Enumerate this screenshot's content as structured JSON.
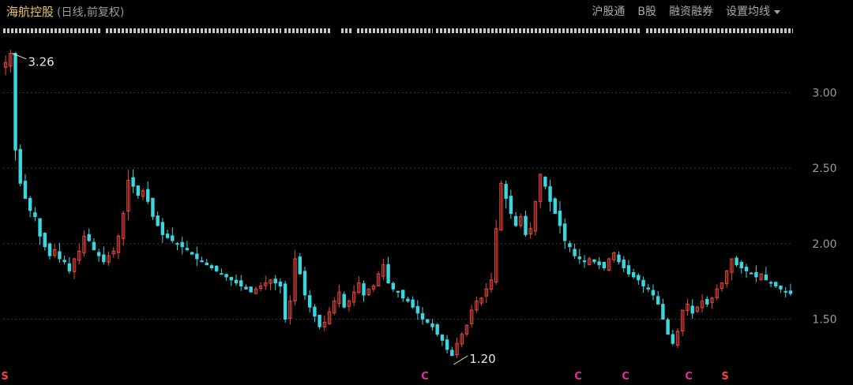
{
  "header": {
    "title": "海航控股",
    "subtitle": "(日线,前复权)",
    "menu": [
      "沪股通",
      "B股",
      "融资融券",
      "设置均线"
    ]
  },
  "colors": {
    "background": "#000000",
    "up": "#e8463c",
    "down": "#39d7e0",
    "grid": "#3a3a3a",
    "marker_c": "#e0309a",
    "marker_s": "#ff3b3b"
  },
  "chart_data": {
    "type": "candlestick",
    "xlabel": "",
    "ylabel": "",
    "ylim": [
      1.2,
      3.3
    ],
    "y_ticks": [
      3.0,
      2.5,
      2.0,
      1.5
    ],
    "y_tick_labels": [
      "3.00",
      "2.50",
      "2.00",
      "1.50"
    ],
    "grid": "horizontal dotted",
    "series_close": [
      3.2,
      3.26,
      2.62,
      2.4,
      2.3,
      2.22,
      2.18,
      2.05,
      1.98,
      1.92,
      1.96,
      1.9,
      1.88,
      1.82,
      1.9,
      1.95,
      2.05,
      2.02,
      1.96,
      1.92,
      1.88,
      1.92,
      1.95,
      2.05,
      2.2,
      2.42,
      2.38,
      2.32,
      2.35,
      2.28,
      2.18,
      2.12,
      2.06,
      2.04,
      2.02,
      2.0,
      1.98,
      1.96,
      1.93,
      1.9,
      1.88,
      1.86,
      1.84,
      1.82,
      1.8,
      1.78,
      1.76,
      1.74,
      1.72,
      1.7,
      1.68,
      1.7,
      1.72,
      1.74,
      1.76,
      1.74,
      1.72,
      1.5,
      1.62,
      1.9,
      1.8,
      1.66,
      1.58,
      1.52,
      1.45,
      1.48,
      1.55,
      1.62,
      1.68,
      1.58,
      1.62,
      1.68,
      1.74,
      1.66,
      1.7,
      1.72,
      1.8,
      1.86,
      1.74,
      1.7,
      1.68,
      1.64,
      1.62,
      1.58,
      1.54,
      1.5,
      1.48,
      1.45,
      1.4,
      1.36,
      1.3,
      1.26,
      1.34,
      1.4,
      1.46,
      1.56,
      1.62,
      1.64,
      1.7,
      1.76,
      2.1,
      2.4,
      2.3,
      2.2,
      2.12,
      2.18,
      2.06,
      2.1,
      2.28,
      2.46,
      2.38,
      2.28,
      2.2,
      2.12,
      2.02,
      1.98,
      1.92,
      1.9,
      1.88,
      1.9,
      1.88,
      1.86,
      1.84,
      1.9,
      1.94,
      1.88,
      1.84,
      1.8,
      1.78,
      1.76,
      1.72,
      1.7,
      1.66,
      1.6,
      1.5,
      1.4,
      1.34,
      1.42,
      1.56,
      1.6,
      1.54,
      1.58,
      1.62,
      1.6,
      1.64,
      1.7,
      1.74,
      1.82,
      1.9,
      1.86,
      1.84,
      1.82,
      1.8,
      1.78,
      1.8,
      1.76,
      1.74,
      1.72,
      1.7,
      1.68,
      1.67
    ],
    "annotations": [
      {
        "label": "3.26",
        "value": 3.26,
        "type": "high"
      },
      {
        "label": "1.20",
        "value": 1.2,
        "type": "low"
      }
    ],
    "bottom_markers": [
      {
        "symbol": "S",
        "kind": "s"
      },
      {
        "symbol": "C",
        "kind": "c"
      },
      {
        "symbol": "C",
        "kind": "c"
      },
      {
        "symbol": "C",
        "kind": "c"
      },
      {
        "symbol": "C",
        "kind": "c"
      },
      {
        "symbol": "S",
        "kind": "s"
      }
    ]
  }
}
